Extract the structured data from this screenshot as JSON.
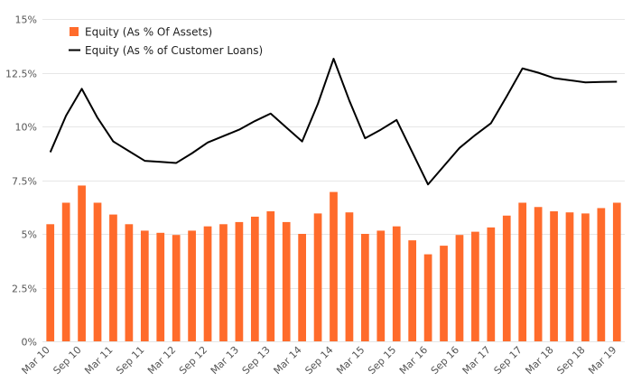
{
  "chart_data": {
    "type": "bar+line",
    "title": "",
    "xlabel": "",
    "ylabel": "",
    "ylim": [
      0,
      15
    ],
    "yticks": [
      0,
      2.5,
      5,
      7.5,
      10,
      12.5,
      15
    ],
    "ytick_labels": [
      "0%",
      "2.5%",
      "5%",
      "7.5%",
      "10%",
      "12.5%",
      "15%"
    ],
    "grid": true,
    "legend_position": "top-left",
    "categories": [
      "Mar 10",
      "Jun 10",
      "Sep 10",
      "Dec 10",
      "Mar 11",
      "Jun 11",
      "Sep 11",
      "Dec 11",
      "Mar 12",
      "Jun 12",
      "Sep 12",
      "Dec 12",
      "Mar 13",
      "Jun 13",
      "Sep 13",
      "Dec 13",
      "Mar 14",
      "Jun 14",
      "Sep 14",
      "Dec 14",
      "Mar 15",
      "Jun 15",
      "Sep 15",
      "Dec 15",
      "Mar 16",
      "Jun 16",
      "Sep 16",
      "Dec 16",
      "Mar 17",
      "Jun 17",
      "Sep 17",
      "Dec 17",
      "Mar 18",
      "Jun 18",
      "Sep 18",
      "Dec 18",
      "Mar 19"
    ],
    "xtick_labels": [
      "Mar 10",
      "Sep 10",
      "Mar 11",
      "Sep 11",
      "Mar 12",
      "Sep 12",
      "Mar 13",
      "Sep 13",
      "Mar 14",
      "Sep 14",
      "Mar 15",
      "Sep 15",
      "Mar 16",
      "Sep 16",
      "Mar 17",
      "Sep 17",
      "Mar 18",
      "Sep 18",
      "Mar 19"
    ],
    "series": [
      {
        "name": "Equity (As % Of Assets)",
        "type": "bar",
        "color": "#ff6b2b",
        "values": [
          5.45,
          6.45,
          7.25,
          6.45,
          5.9,
          5.45,
          5.15,
          5.05,
          4.95,
          5.15,
          5.35,
          5.45,
          5.55,
          5.8,
          6.05,
          5.55,
          5.0,
          5.95,
          6.95,
          6.0,
          5.0,
          5.15,
          5.35,
          4.7,
          4.05,
          4.45,
          4.95,
          5.1,
          5.3,
          5.85,
          6.45,
          6.25,
          6.05,
          6.0,
          5.95,
          6.2,
          6.45
        ]
      },
      {
        "name": "Equity (As % of Customer Loans)",
        "type": "line",
        "color": "#000000",
        "values": [
          8.8,
          10.5,
          11.75,
          10.4,
          9.3,
          8.85,
          8.4,
          8.35,
          8.3,
          8.75,
          9.25,
          9.55,
          9.85,
          10.25,
          10.6,
          9.95,
          9.3,
          11.05,
          13.15,
          11.2,
          9.45,
          9.85,
          10.3,
          8.8,
          7.3,
          8.15,
          9.0,
          9.6,
          10.15,
          11.4,
          12.7,
          12.5,
          12.25,
          12.15,
          12.05,
          12.07,
          12.08
        ]
      }
    ]
  }
}
